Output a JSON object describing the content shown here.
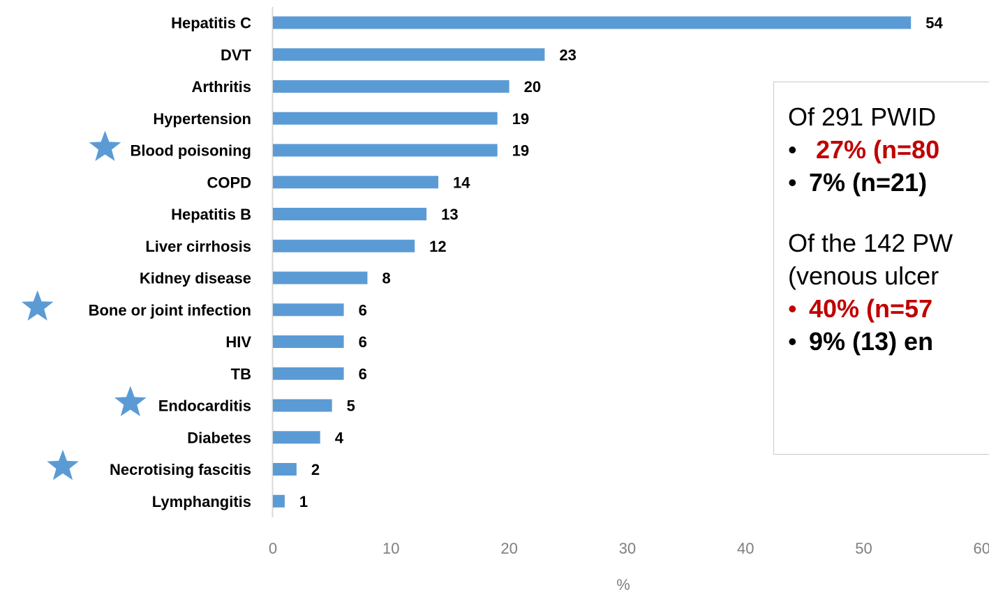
{
  "chart_data": {
    "type": "bar",
    "orientation": "horizontal",
    "categories": [
      "Hepatitis C",
      "DVT",
      "Arthritis",
      "Hypertension",
      "Blood poisoning",
      "COPD",
      "Hepatitis B",
      "Liver cirrhosis",
      "Kidney disease",
      "Bone or joint infection",
      "HIV",
      "TB",
      "Endocarditis",
      "Diabetes",
      "Necrotising fascitis",
      "Lymphangitis"
    ],
    "values": [
      54,
      23,
      20,
      19,
      19,
      14,
      13,
      12,
      8,
      6,
      6,
      6,
      5,
      4,
      2,
      1
    ],
    "starred": [
      "Blood poisoning",
      "Bone or joint infection",
      "Endocarditis",
      "Necrotising fascitis"
    ],
    "xlabel": "%",
    "ylabel": "",
    "title": "",
    "xlim": [
      0,
      60
    ],
    "xticks": [
      "0",
      "10",
      "20",
      "30",
      "40",
      "50",
      "60"
    ],
    "grid": false,
    "data_labels": true,
    "colors": {
      "bar": "#5b9bd5",
      "star": "#5b9bd5",
      "tick": "#7f7f7f",
      "axis": "#d9d9d9"
    }
  },
  "callout": {
    "intro1": "Of 291 PWID",
    "bullet1": "27% (n=80",
    "bullet2": "7% (n=21)",
    "intro2a": "Of the 142 PW",
    "intro2b": "(venous ulcer",
    "bullet3": "40% (n=57",
    "bullet4": "9% (13) en",
    "bullet_glyph": "•",
    "colors": {
      "highlight": "#c00000",
      "text": "#000000",
      "border": "#c8c8c8"
    }
  }
}
